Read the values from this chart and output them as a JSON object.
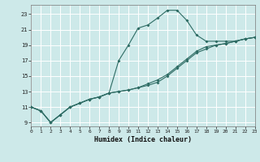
{
  "xlabel": "Humidex (Indice chaleur)",
  "bg_color": "#cde9e9",
  "grid_color": "#b0d8d8",
  "line_color": "#2d6b63",
  "xlim": [
    0,
    23
  ],
  "ylim": [
    8.5,
    24.2
  ],
  "yticks": [
    9,
    11,
    13,
    15,
    17,
    19,
    21,
    23
  ],
  "xticks": [
    0,
    1,
    2,
    3,
    4,
    5,
    6,
    7,
    8,
    9,
    10,
    11,
    12,
    13,
    14,
    15,
    16,
    17,
    18,
    19,
    20,
    21,
    22,
    23
  ],
  "series": [
    {
      "x": [
        0,
        1,
        2,
        3,
        4,
        5,
        6,
        7,
        8,
        9,
        10,
        11,
        12,
        13,
        14,
        15,
        16,
        17,
        18,
        19,
        20,
        21,
        22,
        23
      ],
      "y": [
        11,
        10.5,
        9,
        10,
        11,
        11.5,
        12,
        12.3,
        12.8,
        17,
        19,
        21.2,
        21.6,
        22.5,
        23.5,
        23.5,
        22.2,
        20.3,
        19.5,
        19.5,
        19.5,
        19.5,
        19.8,
        20
      ]
    },
    {
      "x": [
        0,
        1,
        2,
        3,
        4,
        5,
        6,
        7,
        8,
        9,
        10,
        11,
        12,
        13,
        14,
        15,
        16,
        17,
        18,
        19,
        20,
        21,
        22,
        23
      ],
      "y": [
        11,
        10.5,
        9,
        10,
        11,
        11.5,
        12,
        12.3,
        12.8,
        13,
        13.2,
        13.5,
        13.8,
        14.2,
        15,
        16,
        17,
        18,
        18.5,
        19,
        19.2,
        19.5,
        19.8,
        20
      ]
    },
    {
      "x": [
        0,
        1,
        2,
        3,
        4,
        5,
        6,
        7,
        8,
        9,
        10,
        11,
        12,
        13,
        14,
        15,
        16,
        17,
        18,
        19,
        20,
        21,
        22,
        23
      ],
      "y": [
        11,
        10.5,
        9,
        10,
        11,
        11.5,
        12,
        12.3,
        12.8,
        13,
        13.2,
        13.5,
        14,
        14.5,
        15.2,
        16.2,
        17.2,
        18.2,
        18.8,
        19,
        19.2,
        19.5,
        19.8,
        20
      ]
    }
  ]
}
